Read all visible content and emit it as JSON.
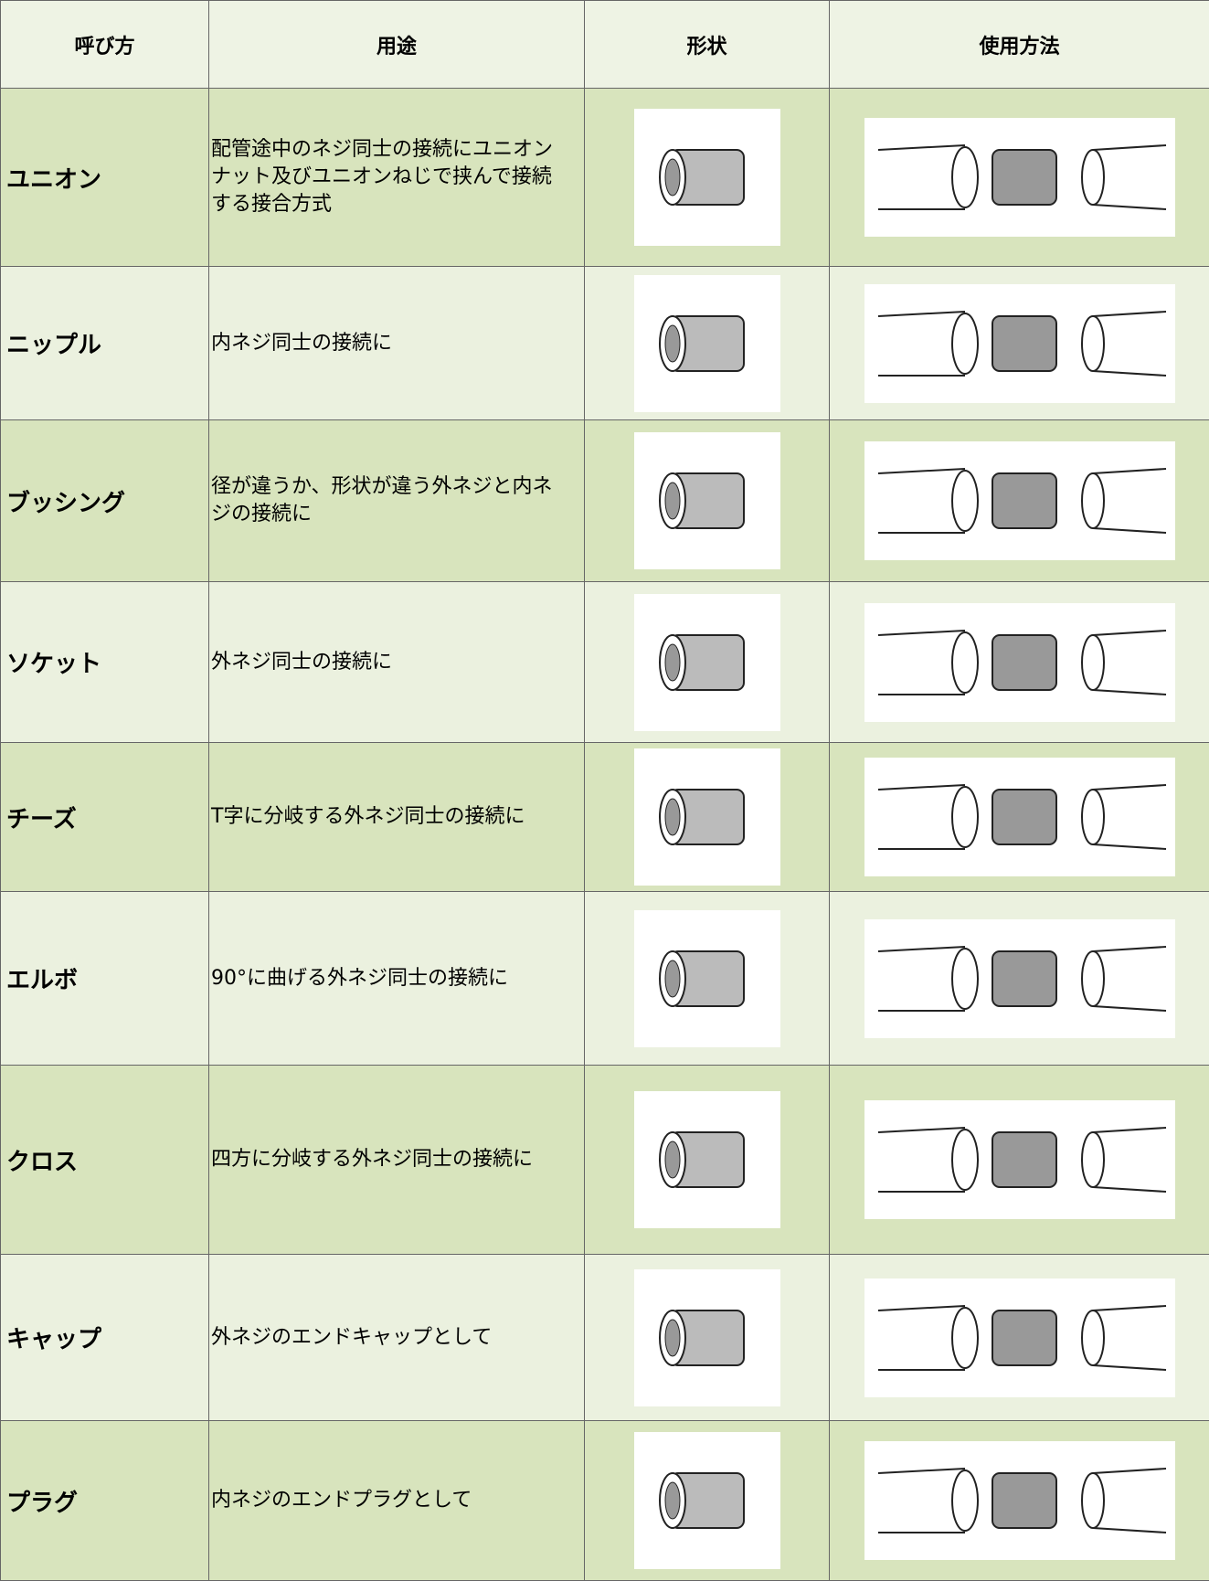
{
  "table": {
    "header": [
      "呼び方",
      "用途",
      "形状",
      "使用方法"
    ],
    "rows": [
      [
        "ユニオン",
        "配管途中のネジ同士の接続にユニオンナット及びユニオンねじで挟んで接続する接合方式"
      ],
      [
        "ニップル",
        "内ネジ同士の接続に"
      ],
      [
        "ブッシング",
        "径が違うか、形状が違う外ネジと内ネジの接続に"
      ],
      [
        "ソケット",
        "外ネジ同士の接続に"
      ],
      [
        "チーズ",
        "T字に分岐する外ネジ同士の接続に"
      ],
      [
        "エルボ",
        "90°に曲げる外ネジ同士の接続に"
      ],
      [
        "クロス",
        "四方に分岐する外ネジ同士の接続に"
      ],
      [
        "キャップ",
        "外ネジのエンドキャップとして"
      ],
      [
        "プラグ",
        "内ネジのエンドプラグとして"
      ]
    ]
  }
}
